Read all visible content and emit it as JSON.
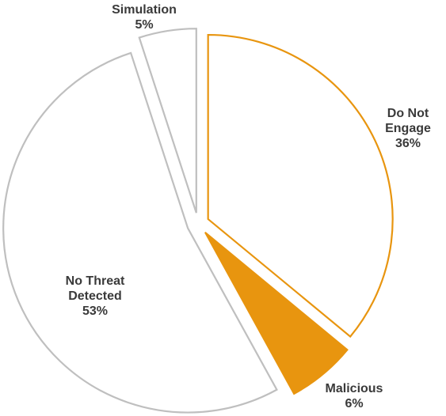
{
  "chart_data": {
    "type": "pie",
    "title": "",
    "slices": [
      {
        "label_lines": [
          "Do Not",
          "Engage"
        ],
        "percent_label": "36%",
        "value": 36,
        "style": "outline",
        "color": "#e8950f"
      },
      {
        "label_lines": [
          "Malicious"
        ],
        "percent_label": "6%",
        "value": 6,
        "style": "filled",
        "color": "#e8950f"
      },
      {
        "label_lines": [
          "No Threat",
          "Detected"
        ],
        "percent_label": "53%",
        "value": 53,
        "style": "outline",
        "color": "#bfbfbf"
      },
      {
        "label_lines": [
          "Simulation"
        ],
        "percent_label": "5%",
        "value": 5,
        "style": "outline",
        "color": "#bfbfbf"
      }
    ]
  }
}
